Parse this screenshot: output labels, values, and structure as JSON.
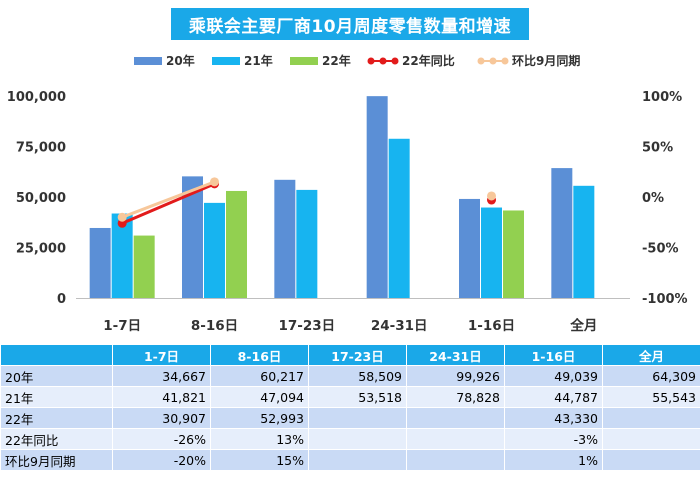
{
  "chart_data": {
    "type": "bar",
    "title": "乘联会主要厂商10月周度零售数量和增速",
    "categories": [
      "1-7日",
      "8-16日",
      "17-23日",
      "24-31日",
      "1-16日",
      "全月"
    ],
    "series": [
      {
        "name": "20年",
        "color": "#5b8fd6",
        "values": [
          34667,
          60217,
          58509,
          99926,
          49039,
          64309
        ]
      },
      {
        "name": "21年",
        "color": "#17b4f0",
        "values": [
          41821,
          47094,
          53518,
          78828,
          44787,
          55543
        ]
      },
      {
        "name": "22年",
        "color": "#92d050",
        "values": [
          30907,
          52993,
          null,
          null,
          43330,
          null
        ]
      }
    ],
    "line_series": [
      {
        "name": "22年同比",
        "color": "#e21b1b",
        "values": [
          -0.26,
          0.13,
          null,
          null,
          -0.03,
          null
        ]
      },
      {
        "name": "环比9月同期",
        "color": "#f7c79a",
        "values": [
          -0.2,
          0.15,
          null,
          null,
          0.01,
          null
        ]
      }
    ],
    "y_left": {
      "min": 0,
      "max": 100000,
      "ticks": [
        "0",
        "25,000",
        "50,000",
        "75,000",
        "100,000"
      ]
    },
    "y_right": {
      "min": -1,
      "max": 1,
      "ticks": [
        "-100%",
        "-50%",
        "0%",
        "50%",
        "100%"
      ]
    }
  },
  "table": {
    "header": [
      "",
      "1-7日",
      "8-16日",
      "17-23日",
      "24-31日",
      "1-16日",
      "全月"
    ],
    "rows": [
      [
        "20年",
        "34,667",
        "60,217",
        "58,509",
        "99,926",
        "49,039",
        "64,309"
      ],
      [
        "21年",
        "41,821",
        "47,094",
        "53,518",
        "78,828",
        "44,787",
        "55,543"
      ],
      [
        "22年",
        "30,907",
        "52,993",
        "",
        "",
        "43,330",
        ""
      ],
      [
        "22年同比",
        "-26%",
        "13%",
        "",
        "",
        "-3%",
        ""
      ],
      [
        "环比9月同期",
        "-20%",
        "15%",
        "",
        "",
        "1%",
        ""
      ]
    ]
  }
}
